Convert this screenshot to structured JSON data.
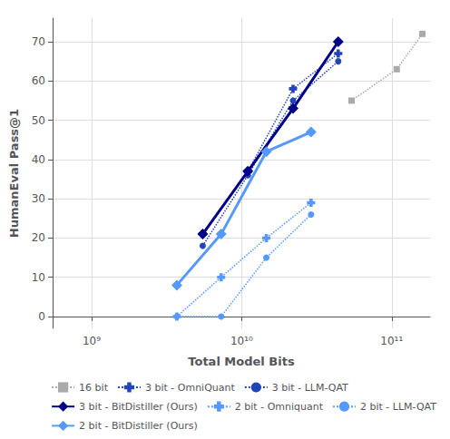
{
  "chart_data": {
    "type": "line",
    "xlabel": "Total Model Bits",
    "ylabel": "HumanEval Pass@1",
    "log": "x",
    "xlim": [
      550000000.0,
      180000000000.0
    ],
    "xticks": [
      {
        "value": 1000000000.0,
        "label": "10⁹"
      },
      {
        "value": 10000000000.0,
        "label": "10¹⁰"
      },
      {
        "value": 100000000000.0,
        "label": "10¹¹"
      }
    ],
    "ylim": [
      -3,
      76
    ],
    "yticks": [
      0,
      10,
      20,
      30,
      40,
      50,
      60,
      70
    ],
    "grid": true,
    "legend": "lower right",
    "series": [
      {
        "name": "16 bit",
        "color": "#aaaaaa",
        "marker": "square",
        "line_style": "dotted",
        "x": [
          54000000000.0,
          108000000000.0,
          160000000000.0
        ],
        "values": [
          55,
          63,
          72
        ]
      },
      {
        "name": "3 bit - OmniQuant",
        "color": "#2244bb",
        "marker": "plus",
        "line_style": "dotted",
        "x": [
          5500000000.0,
          11000000000.0,
          22000000000.0,
          44000000000.0
        ],
        "values": [
          21,
          37,
          58,
          67
        ]
      },
      {
        "name": "3 bit - LLM-QAT",
        "color": "#2244bb",
        "marker": "circle",
        "line_style": "dotted",
        "x": [
          5500000000.0,
          11000000000.0,
          22000000000.0,
          44000000000.0
        ],
        "values": [
          18,
          36,
          55,
          65
        ]
      },
      {
        "name": "3 bit - BitDistiller (Ours)",
        "color": "#00008b",
        "marker": "diamond",
        "line_style": "solid",
        "x": [
          5500000000.0,
          11000000000.0,
          22000000000.0,
          44000000000.0
        ],
        "values": [
          21,
          37,
          53,
          70
        ]
      },
      {
        "name": "2 bit - Omniquant",
        "color": "#5599ff",
        "marker": "plus",
        "line_style": "dotted",
        "x": [
          3700000000.0,
          7300000000.0,
          14600000000.0,
          29000000000.0
        ],
        "values": [
          0,
          10,
          20,
          29
        ]
      },
      {
        "name": "2 bit - LLM-QAT",
        "color": "#5599ff",
        "marker": "circle",
        "line_style": "dotted",
        "x": [
          3700000000.0,
          7300000000.0,
          14600000000.0,
          29000000000.0
        ],
        "values": [
          0,
          0,
          15,
          26
        ]
      },
      {
        "name": "2 bit - BitDistiller (Ours)",
        "color": "#5599ff",
        "marker": "diamond",
        "line_style": "solid",
        "x": [
          3700000000.0,
          7300000000.0,
          14600000000.0,
          29000000000.0
        ],
        "values": [
          8,
          21,
          42,
          47
        ]
      }
    ]
  }
}
